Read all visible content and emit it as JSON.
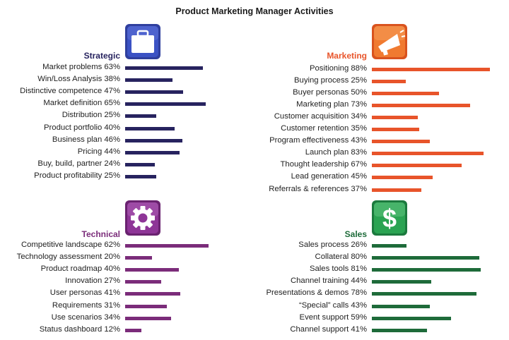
{
  "title": "Product Marketing Manager Activities",
  "chart_data": [
    {
      "type": "bar",
      "orientation": "horizontal",
      "title": "Strategic",
      "icon": "briefcase-icon",
      "color": "#27235f",
      "xlim": [
        0,
        100
      ],
      "unit": "%",
      "categories": [
        "Market problems",
        "Win/Loss Analysis",
        "Distinctive competence",
        "Market definition",
        "Distribution",
        "Product portfolio",
        "Business plan",
        "Pricing",
        "Buy, build, partner",
        "Product profitability"
      ],
      "values": [
        63,
        38,
        47,
        65,
        25,
        40,
        46,
        44,
        24,
        25
      ],
      "labels": [
        "Market problems 63%",
        "Win/Loss Analysis 38%",
        "Distinctive competence 47%",
        "Market definition 65%",
        "Distribution 25%",
        "Product portfolio 40%",
        "Business plan 46%",
        "Pricing 44%",
        "Buy, build, partner 24%",
        "Product profitability 25%"
      ]
    },
    {
      "type": "bar",
      "orientation": "horizontal",
      "title": "Marketing",
      "icon": "megaphone-icon",
      "color": "#e8542a",
      "xlim": [
        0,
        100
      ],
      "unit": "%",
      "categories": [
        "Positioning",
        "Buying process",
        "Buyer personas",
        "Marketing plan",
        "Customer acquisition",
        "Customer retention",
        "Program effectiveness",
        "Launch plan",
        "Thought leadership",
        "Lead generation",
        "Referrals & references"
      ],
      "values": [
        88,
        25,
        50,
        73,
        34,
        35,
        43,
        83,
        67,
        45,
        37
      ],
      "labels": [
        "Positioning 88%",
        "Buying process 25%",
        "Buyer personas 50%",
        "Marketing plan 73%",
        "Customer acquisition 34%",
        "Customer retention 35%",
        "Program effectiveness 43%",
        "Launch plan 83%",
        "Thought leadership 67%",
        "Lead generation 45%",
        "Referrals & references 37%"
      ]
    },
    {
      "type": "bar",
      "orientation": "horizontal",
      "title": "Technical",
      "icon": "gear-icon",
      "color": "#7b2c7a",
      "xlim": [
        0,
        100
      ],
      "unit": "%",
      "categories": [
        "Competitive landscape",
        "Technology assessment",
        "Product roadmap",
        "Innovation",
        "User personas",
        "Requirements",
        "Use scenarios",
        "Status dashboard"
      ],
      "values": [
        62,
        20,
        40,
        27,
        41,
        31,
        34,
        12
      ],
      "labels": [
        "Competitive landscape 62%",
        "Technology assessment 20%",
        "Product roadmap 40%",
        "Innovation 27%",
        "User personas 41%",
        "Requirements 31%",
        "Use scenarios 34%",
        "Status dashboard 12%"
      ]
    },
    {
      "type": "bar",
      "orientation": "horizontal",
      "title": "Sales",
      "icon": "dollar-icon",
      "color": "#1e6b3a",
      "xlim": [
        0,
        100
      ],
      "unit": "%",
      "categories": [
        "Sales process",
        "Collateral",
        "Sales tools",
        "Channel training",
        "Presentations & demos",
        "“Special” calls",
        "Event support",
        "Channel support"
      ],
      "values": [
        26,
        80,
        81,
        44,
        78,
        43,
        59,
        41
      ],
      "labels": [
        "Sales process 26%",
        "Collateral 80%",
        "Sales tools 81%",
        "Channel training 44%",
        "Presentations & demos 78%",
        "“Special” calls 43%",
        "Event support 59%",
        "Channel support 41%"
      ]
    }
  ]
}
